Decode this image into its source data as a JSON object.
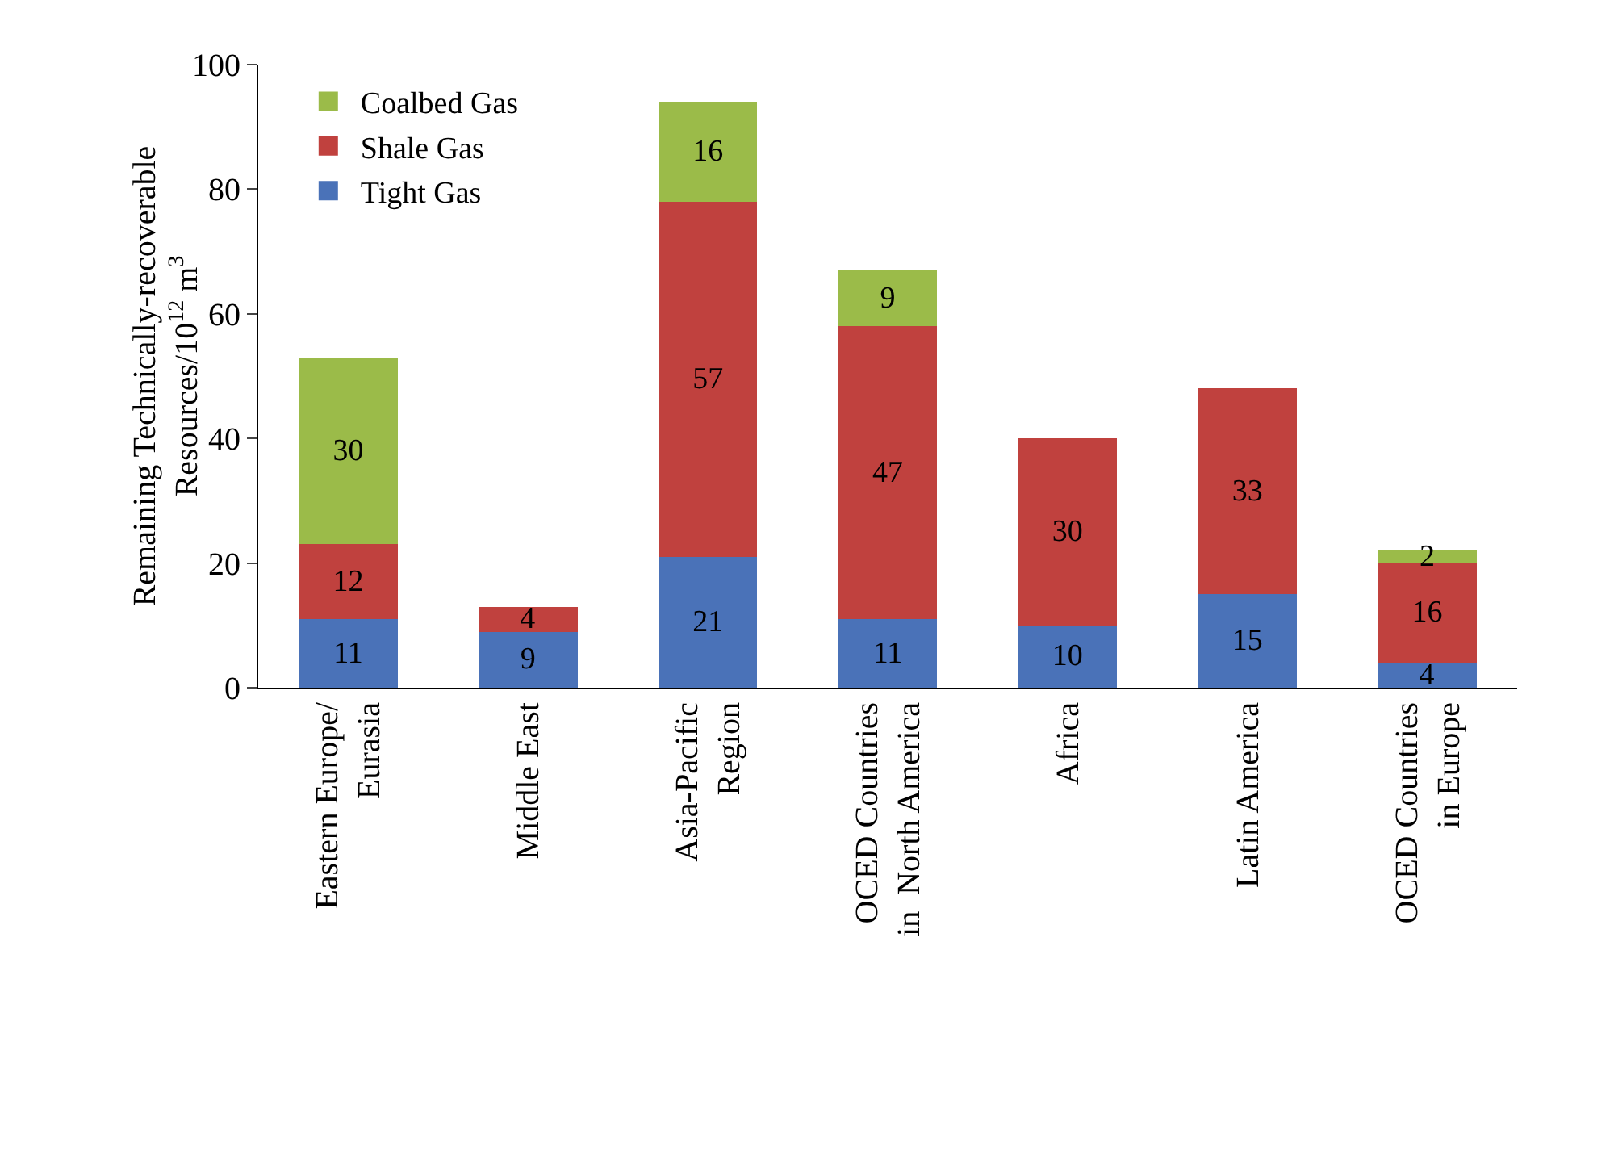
{
  "chart_data": {
    "type": "bar",
    "stacked": true,
    "ylabel": "Remaining Technically-recoverable\nResources/10$^{12}$ m$^{3}$",
    "categories": [
      "Eastern Europe/\nEurasia",
      "Middle East",
      "Asia-Pacific\nRegion",
      "OCED Countries\nin  North America",
      "Africa",
      "Latin America",
      "OCED Countries\nin Europe"
    ],
    "series": [
      {
        "name": "Tight Gas",
        "color": "#4a72b8",
        "values": [
          11,
          9,
          21,
          11,
          10,
          15,
          4
        ]
      },
      {
        "name": "Shale Gas",
        "color": "#c0413e",
        "values": [
          12,
          4,
          57,
          47,
          30,
          33,
          16
        ]
      },
      {
        "name": "Coalbed Gas",
        "color": "#9bbb49",
        "values": [
          30,
          null,
          16,
          9,
          null,
          null,
          2
        ]
      }
    ],
    "ylim": [
      0,
      100
    ],
    "yticks": [
      0,
      20,
      40,
      60,
      80,
      100
    ],
    "grid": false,
    "legend": "top left",
    "data_labels": true
  }
}
